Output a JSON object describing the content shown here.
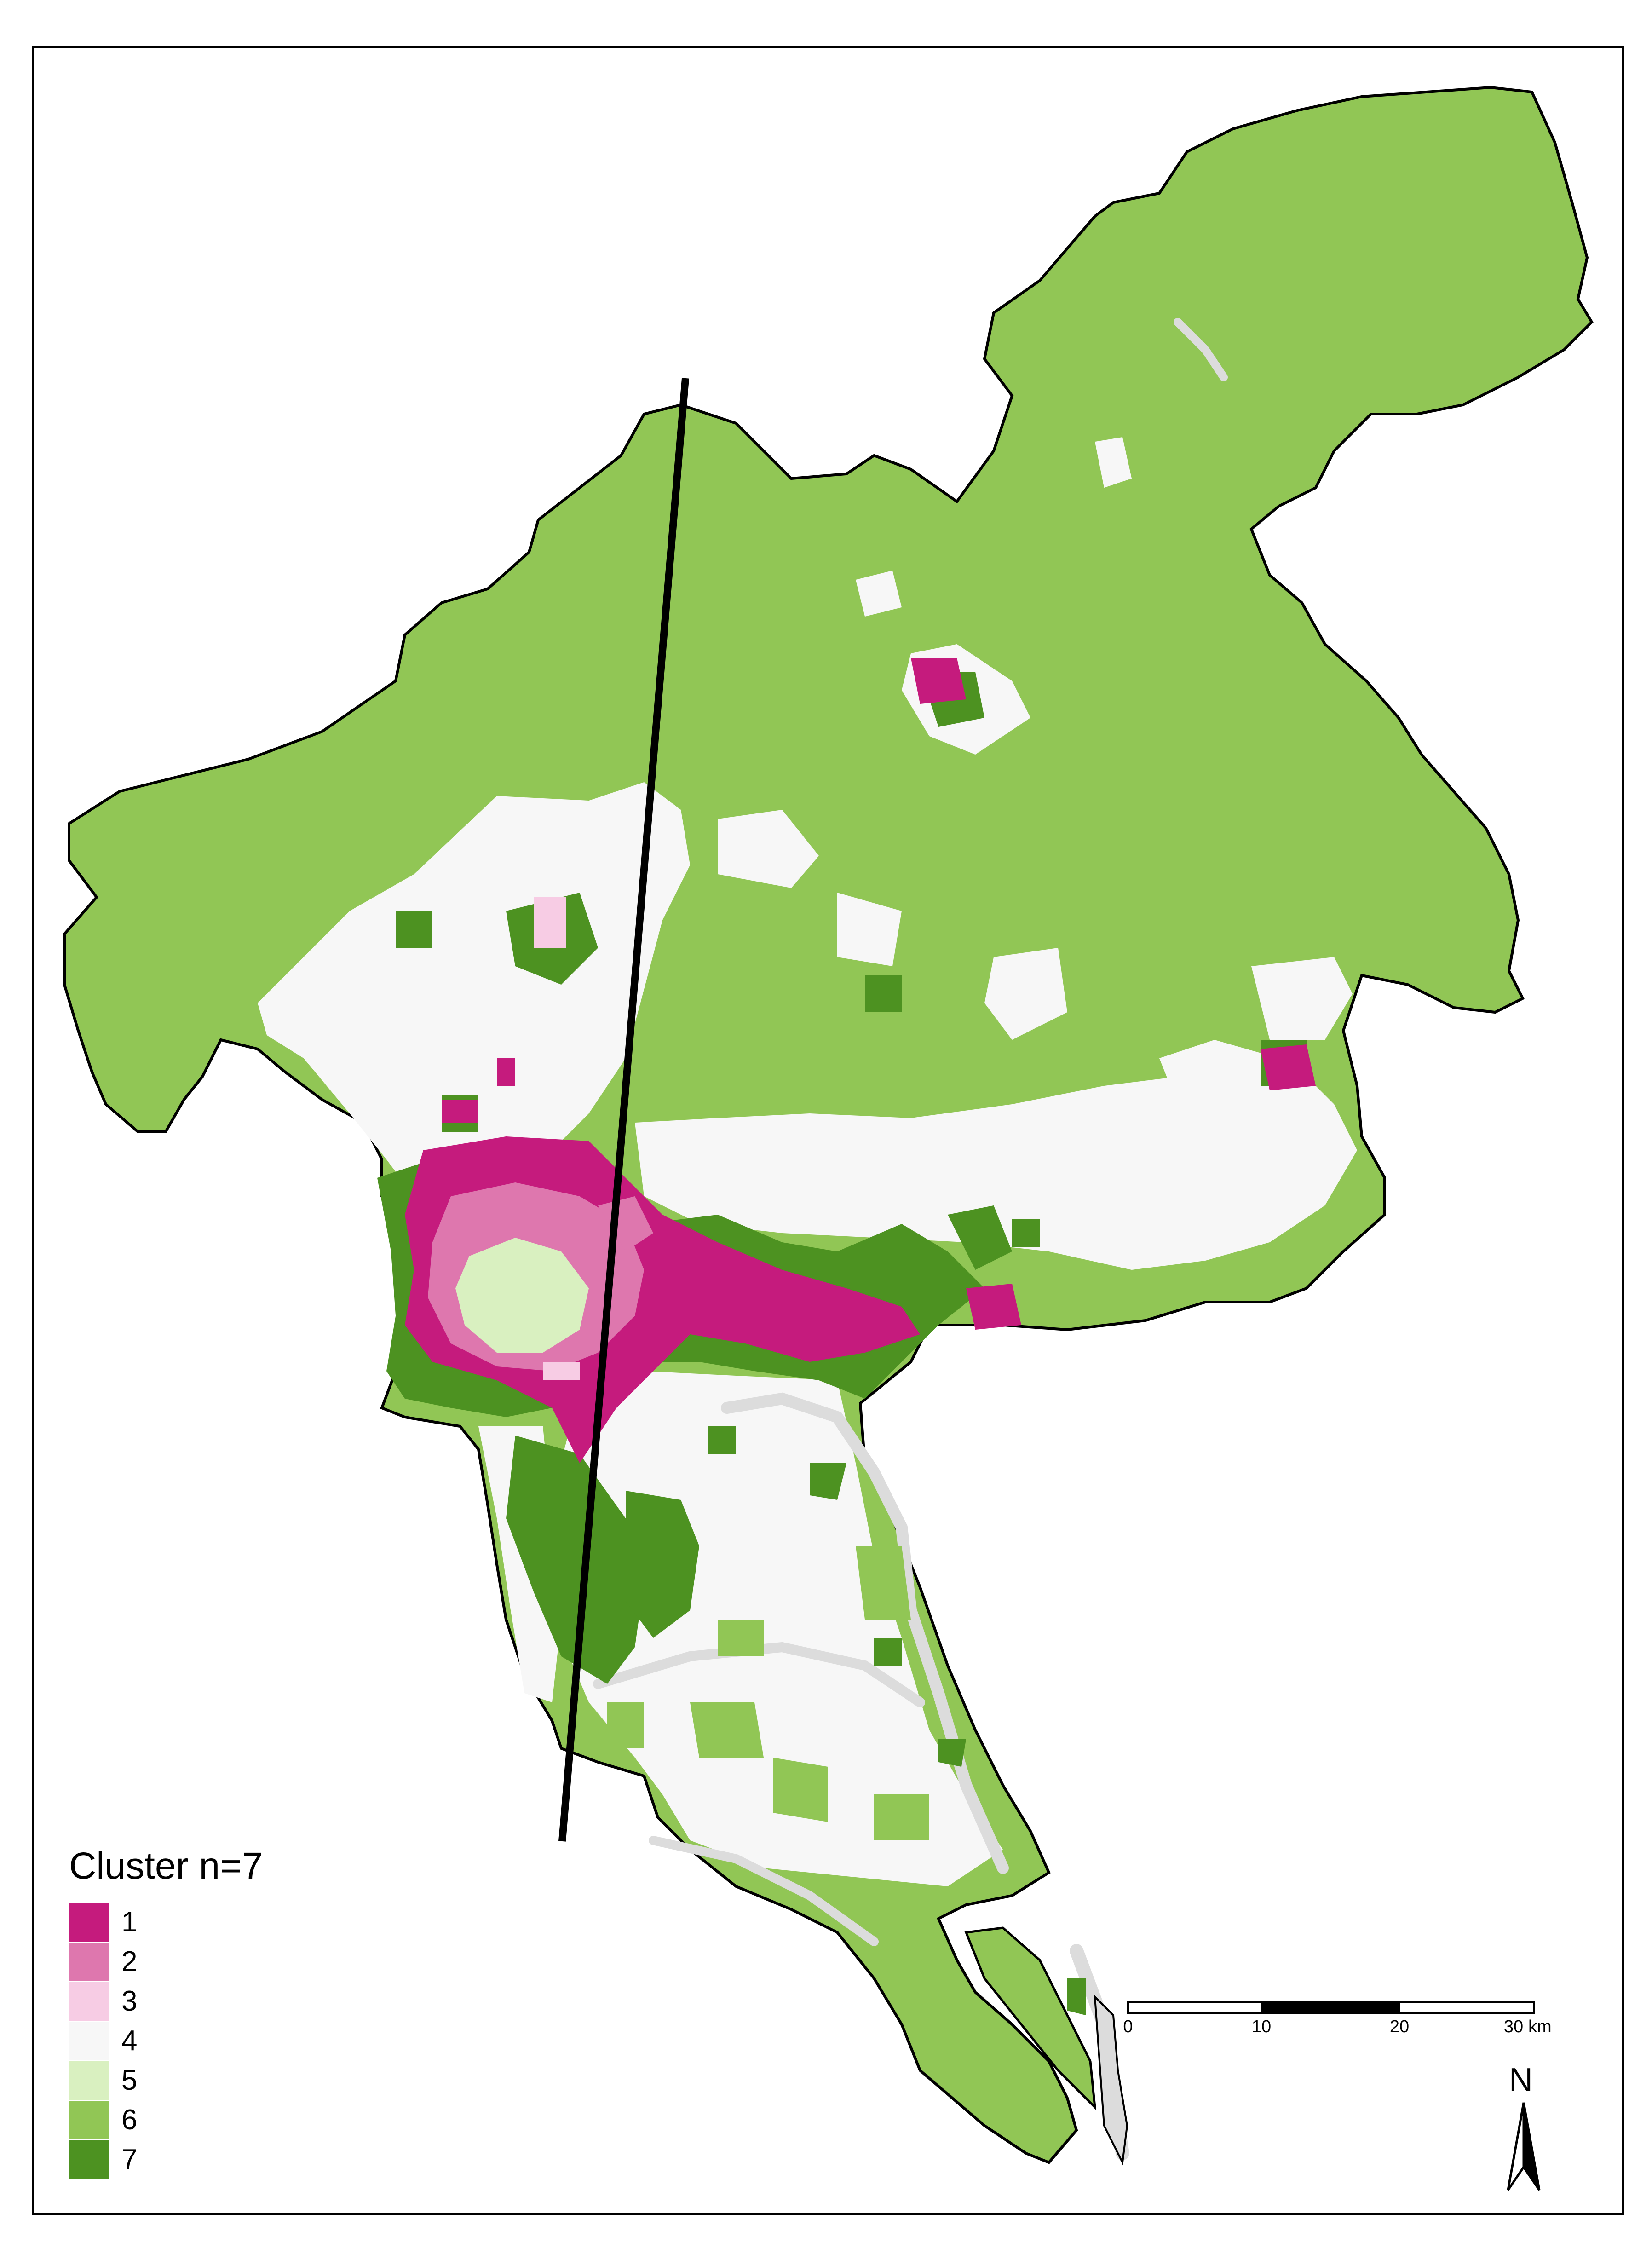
{
  "legend": {
    "title": "Cluster n=7",
    "items": [
      {
        "label": "1",
        "color": "#c51b7d"
      },
      {
        "label": "2",
        "color": "#de77ae"
      },
      {
        "label": "3",
        "color": "#f7cce4"
      },
      {
        "label": "4",
        "color": "#f7f7f7"
      },
      {
        "label": "5",
        "color": "#d9f0c0"
      },
      {
        "label": "6",
        "color": "#91c655"
      },
      {
        "label": "7",
        "color": "#4d9221"
      }
    ]
  },
  "scale_bar": {
    "ticks": [
      "0",
      "10",
      "20",
      "30"
    ],
    "unit": "km"
  },
  "north_arrow": {
    "label": "N"
  },
  "colors": {
    "river": "#dcdcdc",
    "boundary": "#000000",
    "transect": "#000000"
  }
}
